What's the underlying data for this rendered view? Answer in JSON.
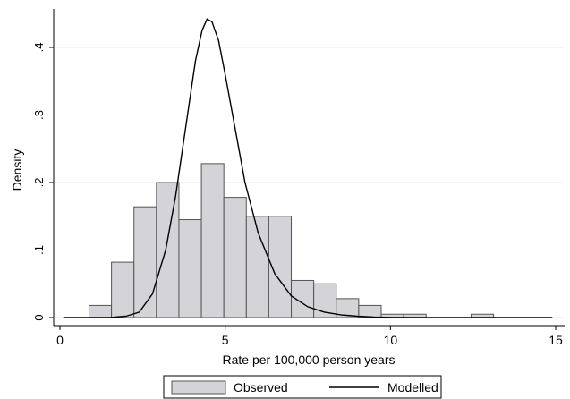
{
  "chart_data": {
    "type": "bar",
    "xlabel": "Rate per 100,000 person years",
    "ylabel": "Density",
    "xlim": [
      0,
      15
    ],
    "ylim": [
      0,
      0.45
    ],
    "x_ticks": [
      0,
      5,
      10,
      15
    ],
    "x_tick_labels": [
      "0",
      "5",
      "10",
      "15"
    ],
    "y_ticks": [
      0,
      0.1,
      0.2,
      0.3,
      0.4
    ],
    "y_tick_labels": [
      "0",
      ".1",
      ".2",
      ".3",
      ".4"
    ],
    "grid": true,
    "legend_position": "bottom",
    "colors": {
      "bar_fill": "#d3d3d8",
      "bar_stroke": "#555555",
      "line": "#000000",
      "grid": "#e6eef4"
    },
    "series": [
      {
        "name": "Observed",
        "type": "histogram",
        "bin_width": 0.68,
        "bins": [
          {
            "x_start": 0.88,
            "density": 0.018
          },
          {
            "x_start": 1.56,
            "density": 0.082
          },
          {
            "x_start": 2.24,
            "density": 0.164
          },
          {
            "x_start": 2.92,
            "density": 0.2
          },
          {
            "x_start": 3.6,
            "density": 0.145
          },
          {
            "x_start": 4.28,
            "density": 0.228
          },
          {
            "x_start": 4.96,
            "density": 0.178
          },
          {
            "x_start": 5.64,
            "density": 0.15
          },
          {
            "x_start": 6.32,
            "density": 0.15
          },
          {
            "x_start": 7.0,
            "density": 0.055
          },
          {
            "x_start": 7.68,
            "density": 0.05
          },
          {
            "x_start": 8.36,
            "density": 0.028
          },
          {
            "x_start": 9.04,
            "density": 0.018
          },
          {
            "x_start": 9.72,
            "density": 0.005
          },
          {
            "x_start": 10.4,
            "density": 0.005
          },
          {
            "x_start": 12.44,
            "density": 0.005
          }
        ]
      },
      {
        "name": "Modelled",
        "type": "line",
        "points": [
          [
            0.1,
            0
          ],
          [
            1.5,
            0
          ],
          [
            2.0,
            0.002
          ],
          [
            2.4,
            0.008
          ],
          [
            2.8,
            0.035
          ],
          [
            3.2,
            0.1
          ],
          [
            3.5,
            0.18
          ],
          [
            3.8,
            0.28
          ],
          [
            4.1,
            0.38
          ],
          [
            4.3,
            0.425
          ],
          [
            4.45,
            0.442
          ],
          [
            4.6,
            0.438
          ],
          [
            4.8,
            0.41
          ],
          [
            5.0,
            0.36
          ],
          [
            5.3,
            0.28
          ],
          [
            5.6,
            0.2
          ],
          [
            6.0,
            0.125
          ],
          [
            6.5,
            0.065
          ],
          [
            7.0,
            0.032
          ],
          [
            7.5,
            0.016
          ],
          [
            8.0,
            0.008
          ],
          [
            8.5,
            0.004
          ],
          [
            9.0,
            0.002
          ],
          [
            9.5,
            0.0008
          ],
          [
            10.0,
            0.0003
          ],
          [
            11.0,
            0
          ],
          [
            14.9,
            0
          ]
        ]
      }
    ]
  }
}
